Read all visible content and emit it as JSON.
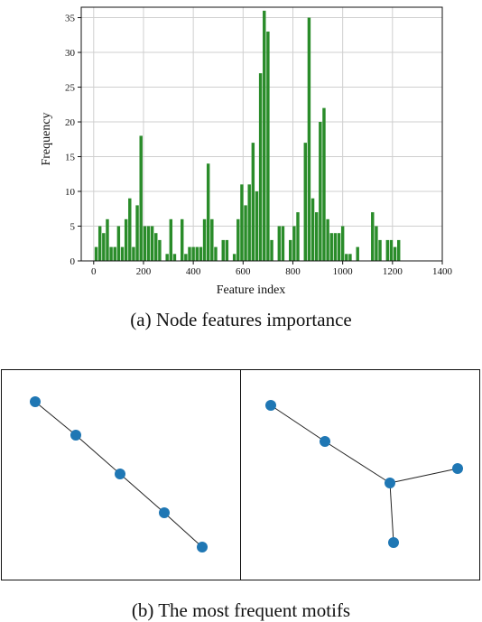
{
  "chart_data": {
    "type": "bar",
    "xlabel": "Feature index",
    "ylabel": "Frequency",
    "xlim": [
      -50,
      1400
    ],
    "ylim": [
      0,
      36.5
    ],
    "xticks": [
      0,
      200,
      400,
      600,
      800,
      1000,
      1200,
      1400
    ],
    "yticks": [
      0,
      5,
      10,
      15,
      20,
      25,
      30,
      35
    ],
    "grid": true,
    "bar_color": "#2a8c2a",
    "bin_width": 15,
    "x": [
      10,
      25,
      40,
      55,
      70,
      85,
      100,
      115,
      130,
      145,
      160,
      175,
      190,
      205,
      220,
      235,
      250,
      265,
      280,
      295,
      310,
      325,
      340,
      355,
      370,
      385,
      400,
      415,
      430,
      445,
      460,
      475,
      490,
      505,
      520,
      535,
      550,
      565,
      580,
      595,
      610,
      625,
      640,
      655,
      670,
      685,
      700,
      715,
      730,
      745,
      760,
      775,
      790,
      805,
      820,
      835,
      850,
      865,
      880,
      895,
      910,
      925,
      940,
      955,
      970,
      985,
      1000,
      1015,
      1030,
      1045,
      1060,
      1075,
      1090,
      1105,
      1120,
      1135,
      1150,
      1165,
      1180,
      1195,
      1210,
      1225,
      1240,
      1255,
      1270,
      1285,
      1300,
      1315,
      1330
    ],
    "values": [
      2,
      5,
      4,
      6,
      2,
      2,
      5,
      2,
      6,
      9,
      2,
      8,
      18,
      5,
      5,
      5,
      4,
      3,
      0,
      1,
      6,
      1,
      0,
      6,
      1,
      2,
      2,
      2,
      2,
      6,
      14,
      6,
      2,
      0,
      3,
      3,
      0,
      1,
      6,
      11,
      8,
      11,
      17,
      10,
      27,
      36,
      33,
      3,
      0,
      5,
      5,
      0,
      3,
      5,
      7,
      0,
      17,
      35,
      9,
      7,
      20,
      22,
      6,
      4,
      4,
      4,
      5,
      1,
      1,
      0,
      2,
      0,
      0,
      0,
      7,
      5,
      3,
      0,
      3,
      3,
      2,
      3,
      0,
      0,
      0,
      0,
      0,
      0,
      0
    ]
  },
  "captions": {
    "a": "(a) Node features importance",
    "b": "(b) The most frequent motifs"
  },
  "motifs": [
    {
      "nodes": [
        [
          0,
          0
        ],
        [
          1,
          0.83
        ],
        [
          2,
          1.66
        ],
        [
          3,
          2.49
        ],
        [
          4,
          3.32
        ]
      ],
      "edges": [
        [
          0,
          1
        ],
        [
          1,
          2
        ],
        [
          2,
          3
        ],
        [
          3,
          4
        ]
      ]
    },
    {
      "nodes": [
        [
          0,
          0
        ],
        [
          1,
          1.0
        ],
        [
          2,
          2.2
        ],
        [
          3,
          1.6
        ],
        [
          4,
          3.4
        ]
      ],
      "edges": [
        [
          0,
          1
        ],
        [
          1,
          2
        ],
        [
          2,
          3
        ],
        [
          2,
          4
        ]
      ]
    }
  ]
}
